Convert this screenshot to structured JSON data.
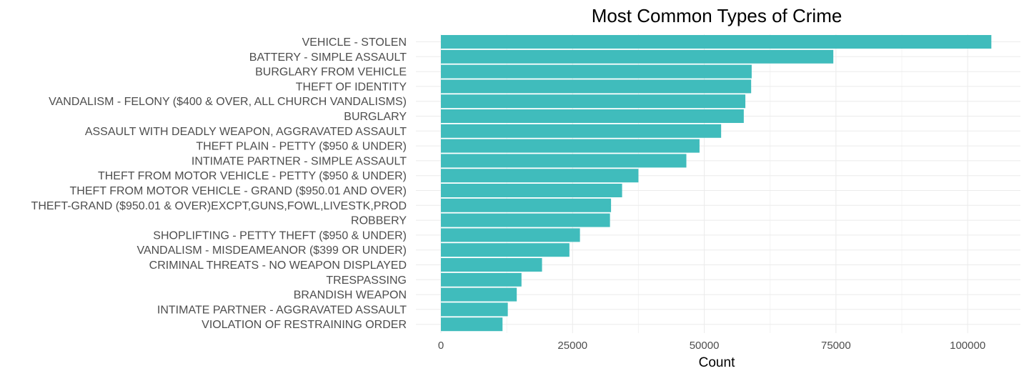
{
  "chart_data": {
    "type": "bar",
    "orientation": "horizontal",
    "title": "Most Common Types of Crime",
    "xlabel": "Count",
    "ylabel": "",
    "xlim": [
      0,
      110000
    ],
    "x_ticks": [
      0,
      25000,
      50000,
      75000,
      100000
    ],
    "x_tick_labels": [
      "0",
      "25000",
      "50000",
      "75000",
      "100000"
    ],
    "bar_color": "#40BCBC",
    "grid": true,
    "legend": "none",
    "categories": [
      "VEHICLE - STOLEN",
      "BATTERY - SIMPLE ASSAULT",
      "BURGLARY FROM VEHICLE",
      "THEFT OF IDENTITY",
      "VANDALISM - FELONY ($400 & OVER, ALL CHURCH VANDALISMS)",
      "BURGLARY",
      "ASSAULT WITH DEADLY WEAPON, AGGRAVATED ASSAULT",
      "THEFT PLAIN - PETTY ($950 & UNDER)",
      "INTIMATE PARTNER - SIMPLE ASSAULT",
      "THEFT FROM MOTOR VEHICLE - PETTY ($950 & UNDER)",
      "THEFT FROM MOTOR VEHICLE - GRAND ($950.01 AND OVER)",
      "THEFT-GRAND ($950.01 & OVER)EXCPT,GUNS,FOWL,LIVESTK,PROD",
      "ROBBERY",
      "SHOPLIFTING - PETTY THEFT ($950 & UNDER)",
      "VANDALISM - MISDEAMEANOR ($399 OR UNDER)",
      "CRIMINAL THREATS - NO WEAPON DISPLAYED",
      "TRESPASSING",
      "BRANDISH WEAPON",
      "INTIMATE PARTNER - AGGRAVATED ASSAULT",
      "VIOLATION OF RESTRAINING ORDER"
    ],
    "values": [
      104500,
      74500,
      59000,
      58900,
      57800,
      57500,
      53200,
      49100,
      46600,
      37500,
      34400,
      32300,
      32100,
      26400,
      24400,
      19200,
      15300,
      14400,
      12700,
      11700
    ]
  }
}
